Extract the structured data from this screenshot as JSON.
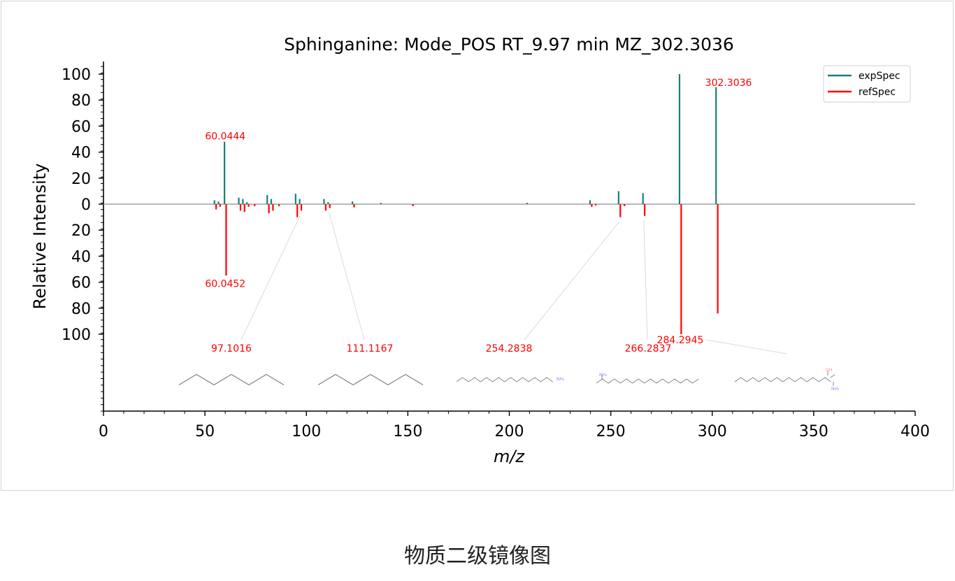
{
  "caption": "物质二级镜像图",
  "chart_data": {
    "type": "mirror-spectrum",
    "title": "Sphinganine: Mode_POS  RT_9.97 min  MZ_302.3036",
    "xlabel": "m/z",
    "ylabel": "Relative Intensity",
    "xlim": [
      0,
      400
    ],
    "ylim": [
      -100,
      100
    ],
    "x_ticks": [
      "0",
      "50",
      "100",
      "150",
      "200",
      "250",
      "300",
      "350",
      "400"
    ],
    "y_ticks_top": [
      "0",
      "20",
      "40",
      "60",
      "80",
      "100"
    ],
    "y_ticks_bottom": [
      "20",
      "40",
      "60",
      "80",
      "100"
    ],
    "legend": {
      "position": "top-right",
      "entries": [
        "expSpec",
        "refSpec"
      ]
    },
    "colors": {
      "expSpec": "#1a7f7a",
      "refSpec": "#ff0000",
      "baseline": "#a0a0a0",
      "leader": "#d9d9d9"
    },
    "series": [
      {
        "name": "expSpec",
        "x": [
          55.1,
          57.1,
          60.0444,
          67.1,
          69.1,
          71.1,
          81.1,
          83.1,
          95.1016,
          97.1016,
          109.1,
          111.1167,
          123.1,
          137.1,
          209.2,
          240.2,
          254.2838,
          266.2837,
          284.2945,
          302.3036
        ],
        "y": [
          3,
          2,
          48,
          5,
          4,
          1.5,
          7,
          4,
          8,
          4,
          4,
          1.5,
          2,
          1,
          1,
          3,
          10,
          8.5,
          100,
          90
        ]
      },
      {
        "name": "refSpec",
        "x": [
          55.1,
          57.1,
          60.0452,
          67.1,
          69.1,
          71.1,
          74.1,
          81.1,
          83.1,
          86.1,
          95.1,
          97.1016,
          109.1,
          111.1167,
          123.1,
          152.1,
          240.2,
          242.2,
          254.2838,
          256.3,
          266.2837,
          284.2945,
          302.3036
        ],
        "y": [
          -4,
          -2,
          -55,
          -5,
          -6,
          -2,
          -1.5,
          -7,
          -5,
          -1.5,
          -10,
          -5,
          -5,
          -3,
          -2.5,
          -1.5,
          -2,
          -1,
          -10,
          -1.5,
          -9,
          -100,
          -84
        ]
      }
    ],
    "annotations": [
      {
        "text": "60.0444",
        "x": 60.0444,
        "y": 48
      },
      {
        "text": "60.0452",
        "x": 60.0452,
        "y": -55
      },
      {
        "text": "302.3036",
        "x": 302.3036,
        "y": 90
      },
      {
        "text": "97.1016",
        "x": 97.1016,
        "y": -5
      },
      {
        "text": "111.1167",
        "x": 111.1167,
        "y": -3
      },
      {
        "text": "254.2838",
        "x": 254.2838,
        "y": -10
      },
      {
        "text": "266.2837",
        "x": 266.2837,
        "y": -9
      },
      {
        "text": "284.2945",
        "x": 284.2945,
        "y": -100
      }
    ],
    "structures": [
      {
        "name": "structure-97",
        "label_ref": "97.1016"
      },
      {
        "name": "structure-111",
        "label_ref": "111.1167"
      },
      {
        "name": "structure-254",
        "label_ref": "254.2838"
      },
      {
        "name": "structure-266",
        "label_ref": "266.2837"
      },
      {
        "name": "structure-284",
        "label_ref": "284.2945"
      }
    ]
  }
}
